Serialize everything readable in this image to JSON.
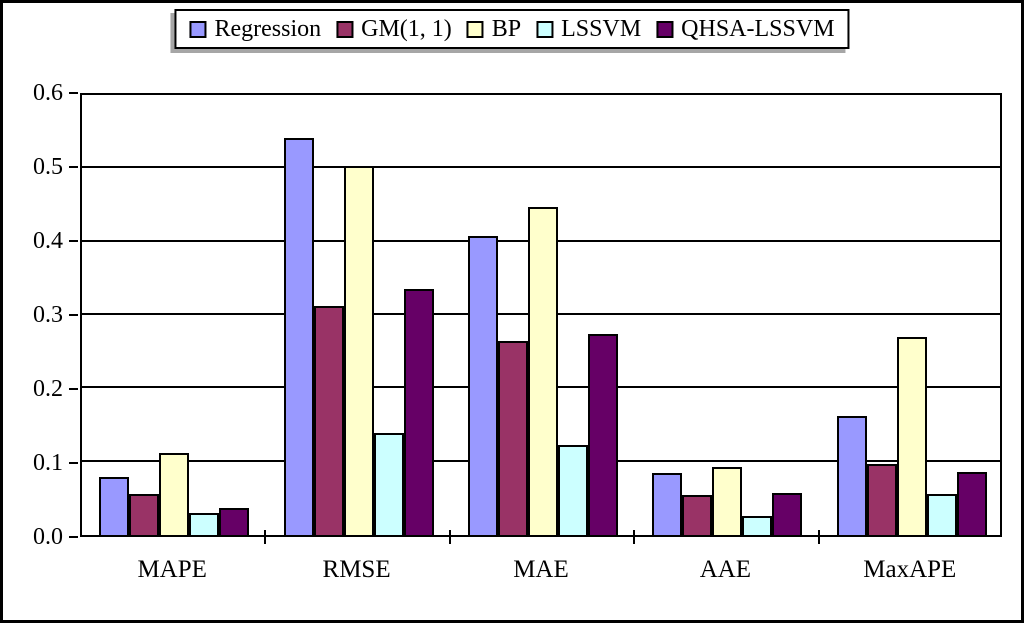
{
  "chart_data": {
    "type": "bar",
    "title": "",
    "xlabel": "",
    "ylabel": "",
    "categories": [
      "MAPE",
      "RMSE",
      "MAE",
      "AAE",
      "MaxAPE"
    ],
    "series": [
      {
        "name": "Regression",
        "color": "#9999FF",
        "values": [
          0.078,
          0.536,
          0.404,
          0.084,
          0.161
        ]
      },
      {
        "name": "GM(1, 1)",
        "color": "#993366",
        "values": [
          0.056,
          0.31,
          0.262,
          0.054,
          0.096
        ]
      },
      {
        "name": "BP",
        "color": "#FFFFCC",
        "values": [
          0.111,
          0.498,
          0.443,
          0.092,
          0.268
        ]
      },
      {
        "name": "LSSVM",
        "color": "#CCFFFF",
        "values": [
          0.03,
          0.138,
          0.122,
          0.026,
          0.056
        ]
      },
      {
        "name": "QHSA-LSSVM",
        "color": "#660066",
        "values": [
          0.037,
          0.332,
          0.271,
          0.057,
          0.085
        ]
      }
    ],
    "ylim": [
      0.0,
      0.6
    ],
    "ytick_step": 0.1,
    "ytick_labels": [
      "0.0",
      "0.1",
      "0.2",
      "0.3",
      "0.4",
      "0.5",
      "0.6"
    ],
    "grid": "horizontal",
    "legend_position": "top",
    "colors": {
      "axis": "#000000",
      "bar_border": "#000000",
      "background": "#FFFFFF",
      "legend_shadow": "#A6A6A6"
    }
  }
}
